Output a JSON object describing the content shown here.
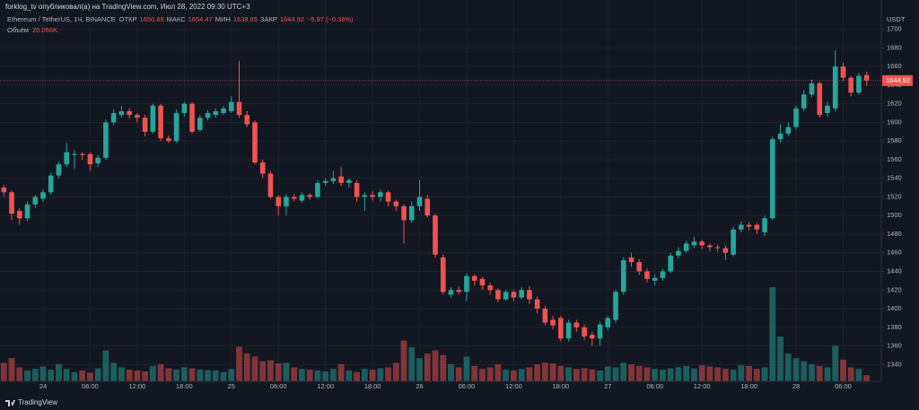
{
  "chart_data": {
    "type": "candlestick",
    "publisher_line": "forklog_tv опубликовал(а) на TradingView.com, Июл 28, 2022 09:30 UTC+3",
    "symbol": "Ethereum / TetherUS, 1Ч, BINANCE",
    "open_label": "ОТКР",
    "high_label": "МАКС",
    "low_label": "МИН",
    "close_label": "ЗАКР",
    "change_text": "−5.97 (−0.36%)",
    "volume_title": "Объём",
    "volume_text": "20.066K",
    "axis_unit": "USDT",
    "brand": "TradingView",
    "up_color": "#26a69a",
    "down_color": "#ef5350",
    "grid": true,
    "ylim": [
      1322,
      1717
    ],
    "yticks": [
      1340,
      1360,
      1380,
      1400,
      1420,
      1440,
      1460,
      1480,
      1500,
      1520,
      1540,
      1560,
      1580,
      1600,
      1620,
      1640,
      1660,
      1680,
      1700
    ],
    "categories": [
      null,
      null,
      null,
      null,
      null,
      "24",
      null,
      null,
      null,
      null,
      null,
      "06:00",
      null,
      null,
      null,
      null,
      null,
      "12:00",
      null,
      null,
      null,
      null,
      null,
      "18:00",
      null,
      null,
      null,
      null,
      null,
      "25",
      null,
      null,
      null,
      null,
      null,
      "06:00",
      null,
      null,
      null,
      null,
      null,
      "12:00",
      null,
      null,
      null,
      null,
      null,
      "18:00",
      null,
      null,
      null,
      null,
      null,
      "26",
      null,
      null,
      null,
      null,
      null,
      "06:00",
      null,
      null,
      null,
      null,
      null,
      "12:00",
      null,
      null,
      null,
      null,
      null,
      "18:00",
      null,
      null,
      null,
      null,
      null,
      "27",
      null,
      null,
      null,
      null,
      null,
      "06:00",
      null,
      null,
      null,
      null,
      null,
      "12:00",
      null,
      null,
      null,
      null,
      null,
      "18:00",
      null,
      null,
      null,
      null,
      null,
      "28",
      null,
      null,
      null,
      null,
      null,
      "06:00",
      null,
      null,
      null
    ],
    "open": [
      1530,
      1525,
      1505,
      1497,
      1512,
      1518,
      1525,
      1543,
      1555,
      1565,
      1566,
      1566,
      1556,
      1562,
      1600,
      1608,
      1612,
      1608,
      1605,
      1590,
      1618,
      1583,
      1580,
      1610,
      1620,
      1592,
      1605,
      1608,
      1610,
      1612,
      1622,
      1608,
      1600,
      1557,
      1545,
      1520,
      1510,
      1520,
      1516,
      1522,
      1520,
      1535,
      1537,
      1542,
      1535,
      1535,
      1520,
      1522,
      1520,
      1525,
      1515,
      1510,
      1495,
      1510,
      1518,
      1500,
      1455,
      1415,
      1420,
      1418,
      1435,
      1432,
      1425,
      1420,
      1410,
      1418,
      1412,
      1420,
      1410,
      1400,
      1388,
      1390,
      1368,
      1385,
      1380,
      1372,
      1368,
      1380,
      1388,
      1418,
      1455,
      1450,
      1440,
      1430,
      1433,
      1440,
      1457,
      1462,
      1468,
      1472,
      1468,
      1466,
      1465,
      1458,
      1485,
      1490,
      1490,
      1482,
      1497,
      1582,
      1588,
      1595,
      1615,
      1630,
      1642,
      1610,
      1615,
      1660,
      1648,
      1632,
      1650.89
    ],
    "high": [
      1533,
      1527,
      1508,
      1515,
      1522,
      1528,
      1546,
      1558,
      1578,
      1570,
      1568,
      1568,
      1565,
      1603,
      1614,
      1618,
      1615,
      1610,
      1608,
      1620,
      1620,
      1586,
      1614,
      1622,
      1622,
      1608,
      1613,
      1615,
      1618,
      1628,
      1666,
      1612,
      1602,
      1560,
      1548,
      1522,
      1523,
      1523,
      1525,
      1524,
      1538,
      1540,
      1548,
      1552,
      1540,
      1538,
      1525,
      1526,
      1528,
      1527,
      1517,
      1512,
      1515,
      1538,
      1522,
      1502,
      1458,
      1423,
      1424,
      1438,
      1437,
      1434,
      1428,
      1422,
      1420,
      1420,
      1423,
      1424,
      1413,
      1403,
      1392,
      1392,
      1388,
      1388,
      1383,
      1375,
      1386,
      1392,
      1420,
      1455,
      1460,
      1453,
      1443,
      1437,
      1443,
      1460,
      1466,
      1473,
      1477,
      1474,
      1470,
      1469,
      1468,
      1488,
      1494,
      1493,
      1492,
      1500,
      1585,
      1598,
      1600,
      1618,
      1635,
      1646,
      1644,
      1622,
      1678,
      1664,
      1650,
      1653,
      1654.47
    ],
    "low": [
      1520,
      1495,
      1490,
      1494,
      1508,
      1515,
      1522,
      1540,
      1552,
      1550,
      1560,
      1548,
      1552,
      1560,
      1597,
      1605,
      1604,
      1600,
      1585,
      1588,
      1580,
      1578,
      1578,
      1606,
      1588,
      1590,
      1602,
      1605,
      1608,
      1610,
      1605,
      1595,
      1555,
      1540,
      1518,
      1500,
      1500,
      1515,
      1514,
      1517,
      1518,
      1532,
      1534,
      1532,
      1530,
      1515,
      1505,
      1516,
      1515,
      1510,
      1505,
      1470,
      1492,
      1505,
      1498,
      1455,
      1415,
      1412,
      1415,
      1408,
      1425,
      1420,
      1415,
      1407,
      1408,
      1408,
      1410,
      1405,
      1395,
      1382,
      1378,
      1365,
      1365,
      1375,
      1366,
      1360,
      1360,
      1377,
      1385,
      1415,
      1445,
      1436,
      1428,
      1425,
      1430,
      1438,
      1454,
      1460,
      1465,
      1464,
      1462,
      1461,
      1452,
      1456,
      1482,
      1484,
      1480,
      1478,
      1495,
      1578,
      1585,
      1592,
      1612,
      1627,
      1605,
      1606,
      1612,
      1645,
      1628,
      1630,
      1638.65
    ],
    "close": [
      1525,
      1502,
      1497,
      1512,
      1520,
      1525,
      1543,
      1555,
      1568,
      1566,
      1565,
      1555,
      1562,
      1600,
      1610,
      1612,
      1608,
      1605,
      1590,
      1618,
      1583,
      1580,
      1610,
      1620,
      1590,
      1605,
      1610,
      1612,
      1615,
      1622,
      1608,
      1598,
      1557,
      1545,
      1520,
      1510,
      1520,
      1518,
      1522,
      1520,
      1535,
      1537,
      1540,
      1535,
      1538,
      1520,
      1522,
      1520,
      1525,
      1515,
      1510,
      1495,
      1510,
      1520,
      1500,
      1458,
      1418,
      1420,
      1418,
      1435,
      1430,
      1425,
      1420,
      1410,
      1418,
      1412,
      1420,
      1410,
      1400,
      1385,
      1382,
      1368,
      1385,
      1380,
      1370,
      1368,
      1383,
      1390,
      1418,
      1452,
      1450,
      1440,
      1432,
      1433,
      1440,
      1457,
      1462,
      1470,
      1472,
      1468,
      1466,
      1465,
      1460,
      1485,
      1490,
      1488,
      1485,
      1497,
      1582,
      1588,
      1595,
      1615,
      1630,
      1642,
      1608,
      1618,
      1660,
      1648,
      1632,
      1650,
      1644.92
    ],
    "volume": [
      60,
      75,
      45,
      35,
      40,
      48,
      38,
      55,
      40,
      30,
      35,
      28,
      42,
      100,
      60,
      45,
      38,
      35,
      32,
      50,
      55,
      42,
      38,
      45,
      42,
      38,
      36,
      35,
      30,
      40,
      112,
      90,
      80,
      65,
      68,
      58,
      60,
      45,
      40,
      38,
      35,
      32,
      40,
      55,
      35,
      30,
      40,
      38,
      42,
      45,
      60,
      132,
      110,
      75,
      90,
      100,
      85,
      55,
      45,
      80,
      50,
      40,
      45,
      55,
      38,
      35,
      40,
      45,
      55,
      60,
      58,
      50,
      45,
      40,
      42,
      38,
      35,
      48,
      45,
      60,
      55,
      50,
      45,
      40,
      38,
      42,
      45,
      50,
      42,
      52,
      48,
      45,
      40,
      38,
      52,
      50,
      40,
      45,
      305,
      145,
      90,
      75,
      65,
      55,
      50,
      45,
      115,
      70,
      45,
      40,
      20.066
    ]
  }
}
